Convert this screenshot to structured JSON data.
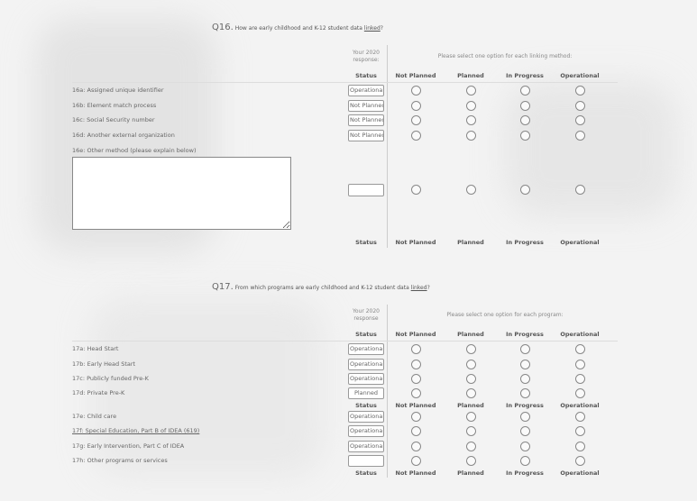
{
  "q16": {
    "number": "Q16.",
    "title_pre": "How are early childhood and K-12 student data ",
    "title_link": "linked",
    "title_post": "?",
    "prior_label": "Your 2020 response:",
    "instruction": "Please select one option for each linking method:",
    "columns": {
      "status": "Status",
      "options": [
        "Not Planned",
        "Planned",
        "In Progress",
        "Operational"
      ]
    },
    "rows": [
      {
        "label": "16a: Assigned unique identifier",
        "status": "Operational"
      },
      {
        "label": "16b: Element match process",
        "status": "Not Planned"
      },
      {
        "label": "16c: Social Security number",
        "status": "Not Planned"
      },
      {
        "label": "16d: Another external organization",
        "status": "Not Planned"
      }
    ],
    "other": {
      "label": "16e: Other method (please explain below)",
      "value": "",
      "status": ""
    }
  },
  "q17": {
    "number": "Q17.",
    "title_pre": "From which programs are early childhood and K-12 student data ",
    "title_link": "linked",
    "title_post": "?",
    "prior_label": "Your 2020 response",
    "instruction": "Please select one option for each program:",
    "columns": {
      "status": "Status",
      "options": [
        "Not Planned",
        "Planned",
        "In Progress",
        "Operational"
      ]
    },
    "rows": [
      {
        "label": "17a: Head Start",
        "status": "Operational"
      },
      {
        "label": "17b: Early Head Start",
        "status": "Operational"
      },
      {
        "label": "17c: Publicly funded Pre-K",
        "status": "Operational"
      },
      {
        "label": "17d: Private Pre-K",
        "status": "Planned"
      },
      {
        "label": "17e: Child care",
        "status": "Operational"
      },
      {
        "label": "17f: Special Education, Part B of IDEA (619)",
        "status": "Operational"
      },
      {
        "label": "17g: Early Intervention, Part C of IDEA",
        "status": "Operational"
      },
      {
        "label": "17h: Other programs or services",
        "status": ""
      }
    ]
  }
}
